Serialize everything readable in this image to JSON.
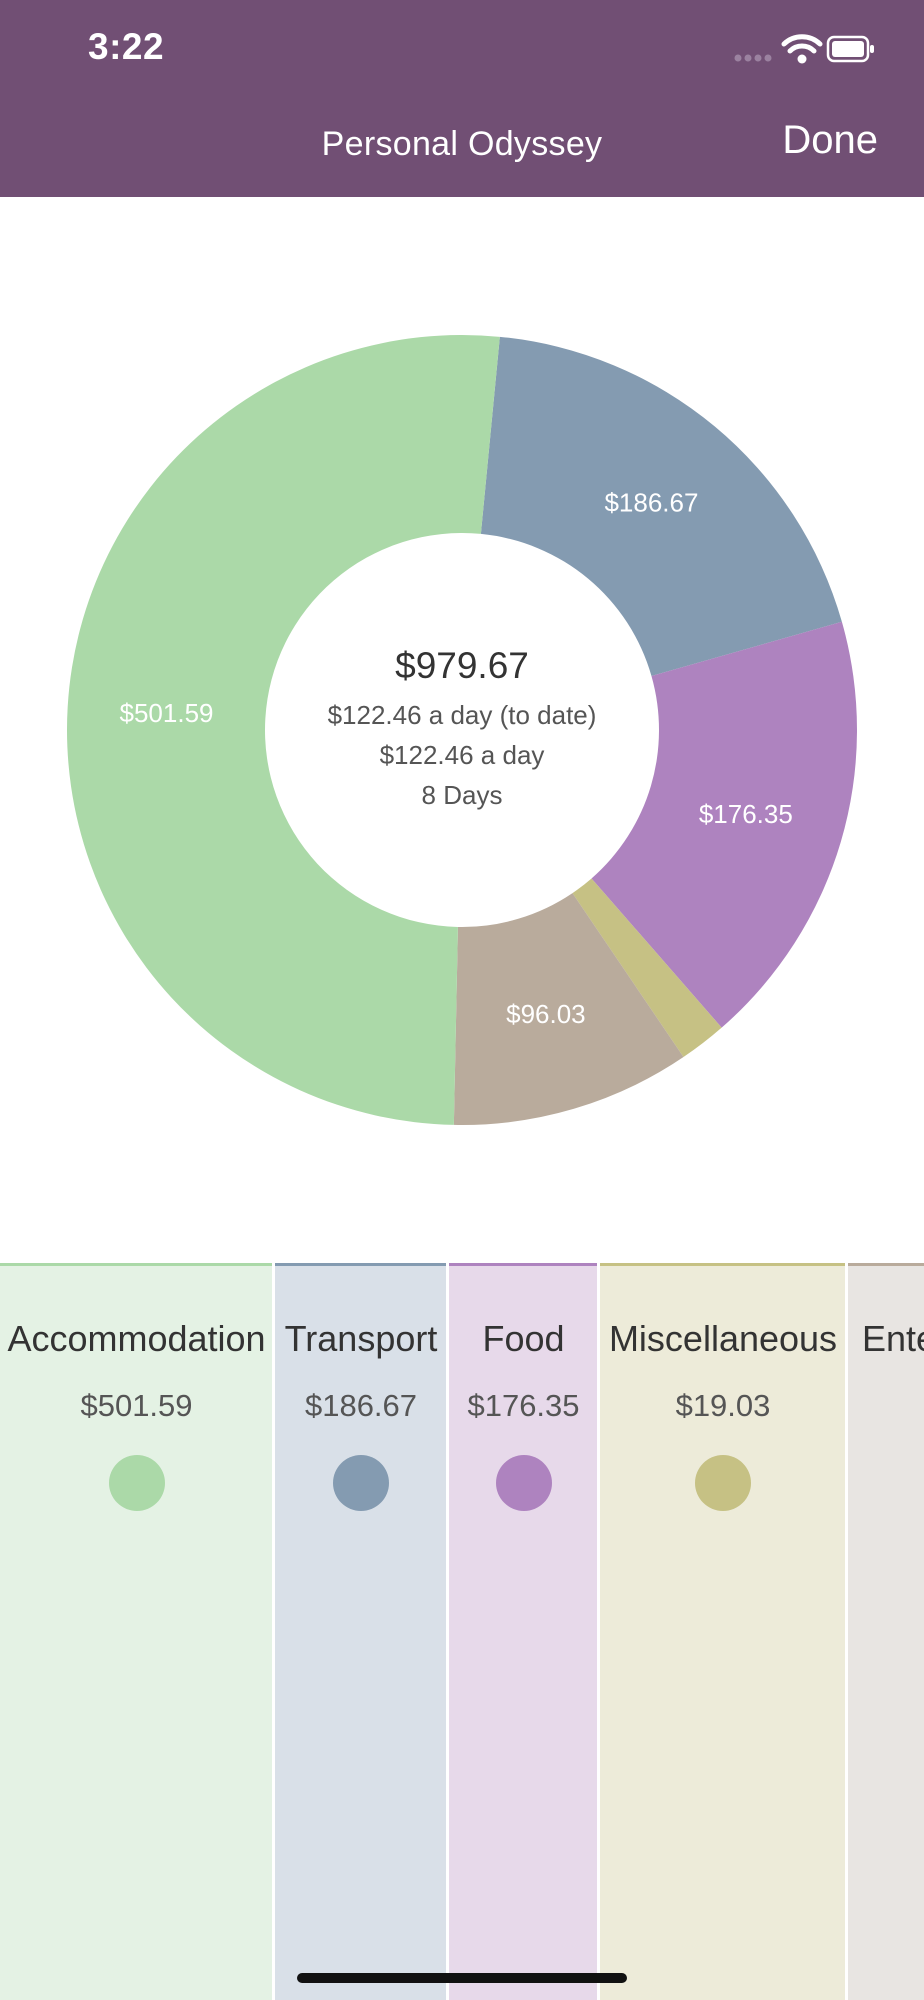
{
  "status_bar": {
    "time": "3:22",
    "icons": [
      "signal-dots-icon",
      "wifi-icon",
      "battery-icon"
    ]
  },
  "header": {
    "title": "Personal Odyssey",
    "done_label": "Done",
    "background": "#714f74"
  },
  "summary": {
    "total": "$979.67",
    "per_day_to_date": "$122.46 a day (to date)",
    "per_day": "$122.46 a day",
    "days": "8 Days"
  },
  "chart_data": {
    "type": "pie",
    "title": "",
    "categories": [
      "Transport",
      "Food",
      "Miscellaneous",
      "Entertainment",
      "Accommodation"
    ],
    "values": [
      186.67,
      176.35,
      19.03,
      96.03,
      501.59
    ],
    "colors": [
      "#849bb1",
      "#ae83bf",
      "#c6c184",
      "#b9ab9c",
      "#abd9a8"
    ],
    "data_labels": [
      "$186.67",
      "$176.35",
      "",
      "$96.03",
      "$501.59"
    ],
    "donut": true
  },
  "categories": [
    {
      "name": "Accommodation",
      "amount": "$501.59",
      "color": "#abd9a8",
      "bg": "#e4f2e4"
    },
    {
      "name": "Transport",
      "amount": "$186.67",
      "color": "#849bb1",
      "bg": "#d9e0e8"
    },
    {
      "name": "Food",
      "amount": "$176.35",
      "color": "#ae83bf",
      "bg": "#e7d9ea"
    },
    {
      "name": "Miscellaneous",
      "amount": "$19.03",
      "color": "#c6c184",
      "bg": "#edebd9"
    },
    {
      "name": "Ente",
      "amount": "$",
      "color": "#b9ab9c",
      "bg": "#e8e5e2"
    }
  ]
}
